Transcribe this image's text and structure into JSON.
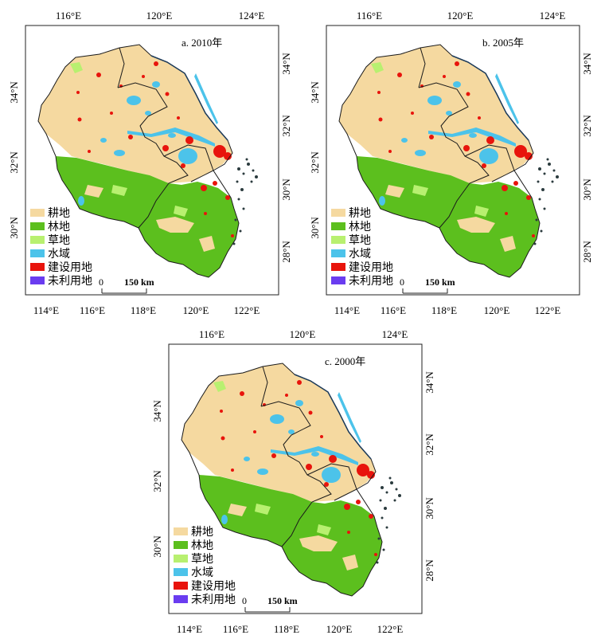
{
  "panels": [
    {
      "label": "a. 2010年"
    },
    {
      "label": "b. 2005年"
    },
    {
      "label": "c. 2000年"
    }
  ],
  "axes": {
    "top": [
      "116°E",
      "120°E",
      "124°E"
    ],
    "bottom": [
      "114°E",
      "116°E",
      "118°E",
      "120°E",
      "122°E"
    ],
    "left": [
      "34°N",
      "32°N",
      "30°N"
    ],
    "right": [
      "34°N",
      "32°N",
      "30°N",
      "28°N"
    ]
  },
  "legend": [
    {
      "label": "耕地",
      "color": "#f5d9a0"
    },
    {
      "label": "林地",
      "color": "#5cbf1e"
    },
    {
      "label": "草地",
      "color": "#b8f070"
    },
    {
      "label": "水域",
      "color": "#4cc3ea"
    },
    {
      "label": "建设用地",
      "color": "#e8140c"
    },
    {
      "label": "未利用地",
      "color": "#6a3cf0"
    }
  ],
  "scalebar": {
    "zero": "0",
    "label": "150 km"
  }
}
